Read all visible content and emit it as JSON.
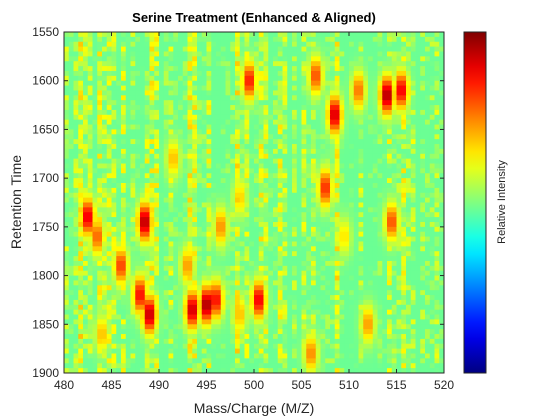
{
  "chart_data": {
    "type": "heatmap",
    "title": "Serine Treatment (Enhanced & Aligned)",
    "xlabel": "Mass/Charge (M/Z)",
    "ylabel": "Retention Time",
    "colorbar_label": "Relative Intensity",
    "colormap": "jet",
    "xlim": [
      480,
      520
    ],
    "ylim": [
      1550,
      1900
    ],
    "y_reversed": true,
    "x_ticks": [
      480,
      485,
      490,
      495,
      500,
      505,
      510,
      515,
      520
    ],
    "y_ticks": [
      1550,
      1600,
      1650,
      1700,
      1750,
      1800,
      1850,
      1900
    ],
    "background_intensity": 0.48,
    "intensity_scale": [
      0,
      1
    ],
    "hotspots": [
      {
        "mz": 482.5,
        "rt": 1740,
        "intensity": 0.93
      },
      {
        "mz": 483.5,
        "rt": 1760,
        "intensity": 0.8
      },
      {
        "mz": 488.5,
        "rt": 1745,
        "intensity": 0.98
      },
      {
        "mz": 489.0,
        "rt": 1840,
        "intensity": 0.97
      },
      {
        "mz": 488.0,
        "rt": 1820,
        "intensity": 0.9
      },
      {
        "mz": 493.5,
        "rt": 1835,
        "intensity": 0.96
      },
      {
        "mz": 495.0,
        "rt": 1830,
        "intensity": 1.0
      },
      {
        "mz": 496.0,
        "rt": 1825,
        "intensity": 0.9
      },
      {
        "mz": 496.5,
        "rt": 1750,
        "intensity": 0.75
      },
      {
        "mz": 500.5,
        "rt": 1825,
        "intensity": 0.92
      },
      {
        "mz": 498.5,
        "rt": 1840,
        "intensity": 0.7
      },
      {
        "mz": 499.5,
        "rt": 1600,
        "intensity": 0.88
      },
      {
        "mz": 508.5,
        "rt": 1635,
        "intensity": 0.95
      },
      {
        "mz": 506.5,
        "rt": 1595,
        "intensity": 0.82
      },
      {
        "mz": 507.5,
        "rt": 1710,
        "intensity": 0.86
      },
      {
        "mz": 511.0,
        "rt": 1610,
        "intensity": 0.78
      },
      {
        "mz": 514.0,
        "rt": 1615,
        "intensity": 0.99
      },
      {
        "mz": 515.5,
        "rt": 1610,
        "intensity": 0.92
      },
      {
        "mz": 509.5,
        "rt": 1760,
        "intensity": 0.66
      },
      {
        "mz": 514.5,
        "rt": 1745,
        "intensity": 0.82
      },
      {
        "mz": 486.0,
        "rt": 1790,
        "intensity": 0.84
      },
      {
        "mz": 491.5,
        "rt": 1680,
        "intensity": 0.7
      },
      {
        "mz": 498.5,
        "rt": 1720,
        "intensity": 0.68
      },
      {
        "mz": 484.0,
        "rt": 1860,
        "intensity": 0.7
      },
      {
        "mz": 512.0,
        "rt": 1850,
        "intensity": 0.74
      },
      {
        "mz": 506.0,
        "rt": 1880,
        "intensity": 0.76
      },
      {
        "mz": 493.0,
        "rt": 1790,
        "intensity": 0.74
      }
    ]
  }
}
